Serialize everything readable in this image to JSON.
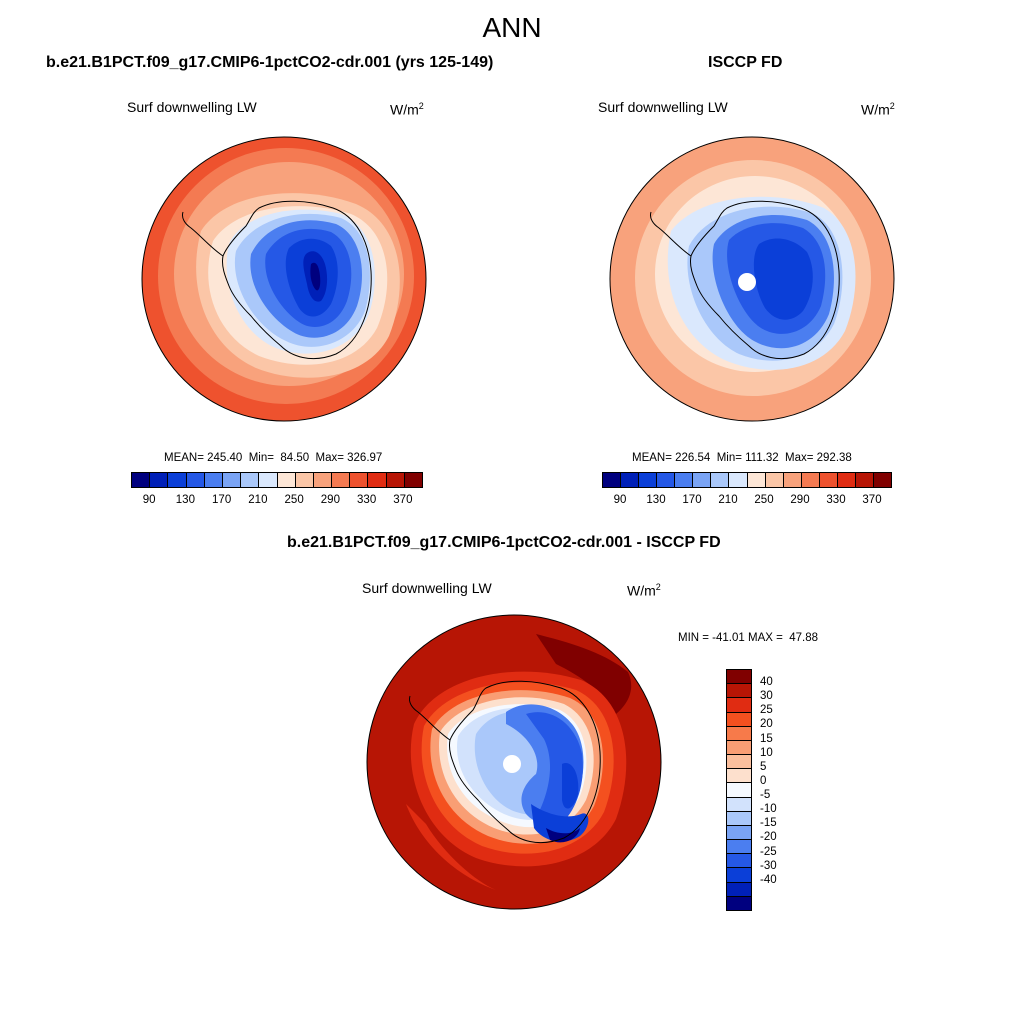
{
  "main_title": "ANN",
  "panel_model": {
    "title": "b.e21.B1PCT.f09_g17.CMIP6-1pctCO2-cdr.001 (yrs 125-149)",
    "variable": "Surf downwelling LW",
    "units": "W/m",
    "units_sup": "2",
    "stats": "MEAN= 245.40  Min=  84.50  Max= 326.97",
    "mean": 245.4,
    "min": 84.5,
    "max": 326.97
  },
  "panel_obs": {
    "title": "ISCCP FD",
    "variable": "Surf downwelling LW",
    "units": "W/m",
    "units_sup": "2",
    "stats": "MEAN= 226.54  Min= 111.32  Max= 292.38",
    "mean": 226.54,
    "min": 111.32,
    "max": 292.38
  },
  "panel_diff": {
    "title": "b.e21.B1PCT.f09_g17.CMIP6-1pctCO2-cdr.001 - ISCCP FD",
    "variable": "Surf downwelling LW",
    "units": "W/m",
    "units_sup": "2",
    "stats": "MIN = -41.01 MAX =  47.88",
    "min": -41.01,
    "max": 47.88
  },
  "colorbar_abs": {
    "colors": [
      "#00007f",
      "#0020b8",
      "#0b3fd8",
      "#2558e6",
      "#4b7ef0",
      "#7aa4f5",
      "#aac8fa",
      "#dae8fd",
      "#fde6d6",
      "#fbc6a7",
      "#f8a27c",
      "#f47a52",
      "#ee522e",
      "#e02c12",
      "#b71505",
      "#800000"
    ],
    "ticks": [
      "90",
      "130",
      "170",
      "210",
      "250",
      "290",
      "330",
      "370"
    ]
  },
  "colorbar_diff": {
    "colors": [
      "#800000",
      "#b71505",
      "#e02c12",
      "#f4501f",
      "#f77a4a",
      "#f99e74",
      "#fbbf9d",
      "#fde0cd",
      "#f5f9ff",
      "#d2e2fc",
      "#aac8fa",
      "#7aa4f5",
      "#4b7ef0",
      "#2558e6",
      "#0b3fd8",
      "#0020b8",
      "#00007f"
    ],
    "ticks": [
      "40",
      "30",
      "25",
      "20",
      "15",
      "10",
      "5",
      "0",
      "-5",
      "-10",
      "-15",
      "-20",
      "-25",
      "-30",
      "-40"
    ]
  },
  "chart_data": [
    {
      "type": "heatmap",
      "title": "b.e21.B1PCT.f09_g17.CMIP6-1pctCO2-cdr.001 (yrs 125-149)",
      "variable": "Surf downwelling LW",
      "units": "W/m^2",
      "projection": "south polar stereographic",
      "colorbar_levels": [
        90,
        130,
        170,
        210,
        250,
        290,
        330,
        370
      ],
      "mean": 245.4,
      "min": 84.5,
      "max": 326.97
    },
    {
      "type": "heatmap",
      "title": "ISCCP FD",
      "variable": "Surf downwelling LW",
      "units": "W/m^2",
      "projection": "south polar stereographic",
      "colorbar_levels": [
        90,
        130,
        170,
        210,
        250,
        290,
        330,
        370
      ],
      "mean": 226.54,
      "min": 111.32,
      "max": 292.38
    },
    {
      "type": "heatmap",
      "title": "b.e21.B1PCT.f09_g17.CMIP6-1pctCO2-cdr.001 - ISCCP FD",
      "variable": "Surf downwelling LW",
      "units": "W/m^2",
      "projection": "south polar stereographic",
      "colorbar_levels": [
        -40,
        -30,
        -25,
        -20,
        -15,
        -10,
        -5,
        0,
        5,
        10,
        15,
        20,
        25,
        30,
        40
      ],
      "min": -41.01,
      "max": 47.88
    }
  ]
}
